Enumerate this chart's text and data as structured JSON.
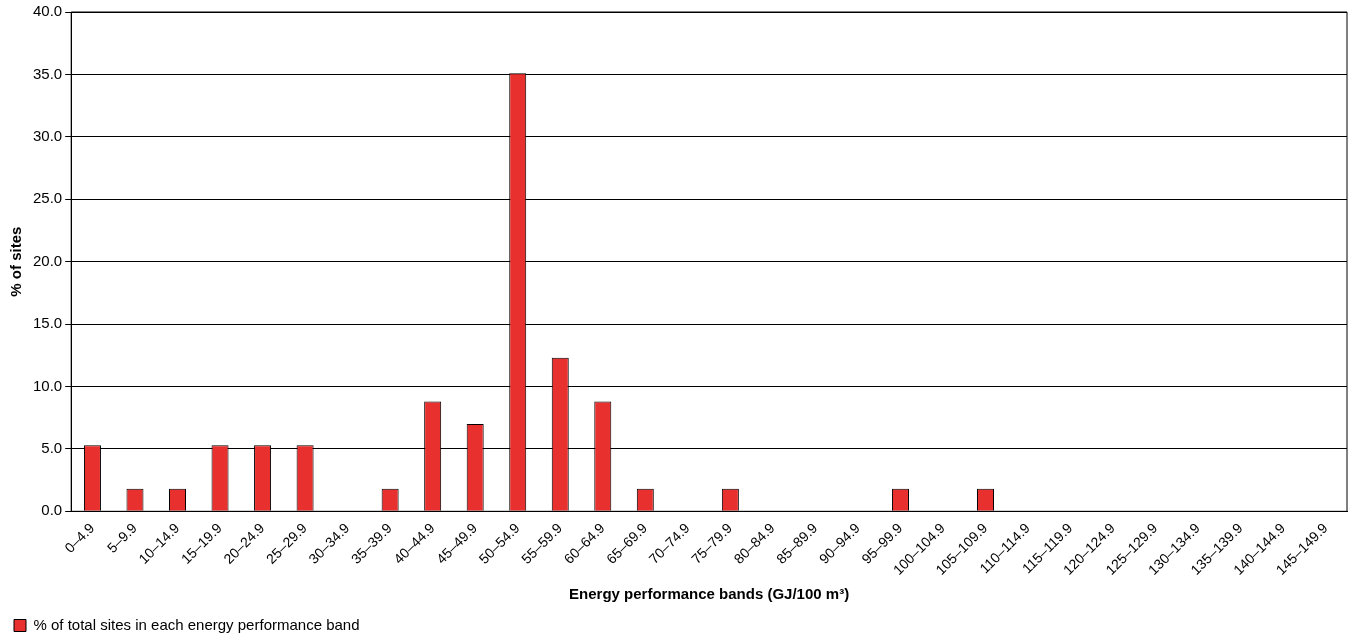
{
  "chart_data": {
    "type": "bar",
    "categories": [
      "0–4.9",
      "5–9.9",
      "10–14.9",
      "15–19.9",
      "20–24.9",
      "25–29.9",
      "30–34.9",
      "35–39.9",
      "40–44.9",
      "45–49.9",
      "50–54.9",
      "55–59.9",
      "60–64.9",
      "65–69.9",
      "70–74.9",
      "75–79.9",
      "80–84.9",
      "85–89.9",
      "90–94.9",
      "95–99.9",
      "100–104.9",
      "105–109.9",
      "110–114.9",
      "115–119.9",
      "120–124.9",
      "125–129.9",
      "130–134.9",
      "135–139.9",
      "140–144.9",
      "145–149.9"
    ],
    "series": [
      {
        "name": "% of total sites in each energy performance band",
        "color": "#e8312f",
        "values": [
          5.3,
          1.8,
          1.8,
          5.3,
          5.3,
          5.3,
          0,
          1.8,
          8.8,
          7.0,
          35.1,
          12.3,
          8.8,
          1.8,
          0,
          1.8,
          0,
          0,
          0,
          1.8,
          0,
          1.8,
          0,
          0,
          0,
          0,
          0,
          0,
          0,
          0
        ]
      }
    ],
    "xlabel": "Energy performance bands (GJ/100 m³)",
    "ylabel": "% of sites",
    "ylim": [
      0,
      40
    ],
    "yticks": [
      {
        "value": 0,
        "label": "0.0"
      },
      {
        "value": 5,
        "label": "5.0"
      },
      {
        "value": 10,
        "label": "10.0"
      },
      {
        "value": 15,
        "label": "15.0"
      },
      {
        "value": 20,
        "label": "20.0"
      },
      {
        "value": 25,
        "label": "25.0"
      },
      {
        "value": 30,
        "label": "30.0"
      },
      {
        "value": 35,
        "label": "35.0"
      },
      {
        "value": 40,
        "label": "40.0"
      }
    ],
    "grid": "y",
    "legend": "bottom left"
  }
}
